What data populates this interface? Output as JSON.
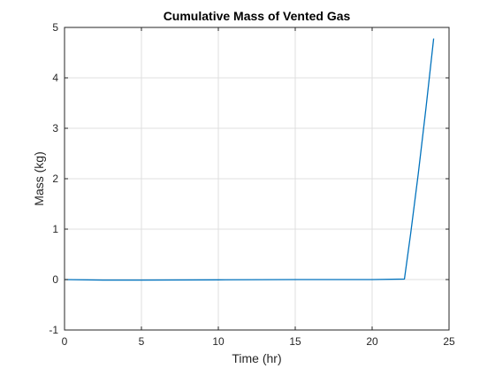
{
  "chart_data": {
    "type": "line",
    "title": "Cumulative Mass of Vented Gas",
    "xlabel": "Time (hr)",
    "ylabel": "Mass (kg)",
    "xlim": [
      0,
      25
    ],
    "ylim": [
      -1,
      5
    ],
    "xticks": [
      "0",
      "5",
      "10",
      "15",
      "20",
      "25"
    ],
    "yticks": [
      "-1",
      "0",
      "1",
      "2",
      "3",
      "4",
      "5"
    ],
    "grid": true,
    "series": [
      {
        "color": "#0072BD",
        "x": [
          0,
          2.5,
          5,
          10,
          15,
          20,
          22.1,
          22.5,
          23,
          23.5,
          24
        ],
        "y": [
          0,
          -0.01,
          -0.01,
          -0.005,
          0,
          0,
          0.01,
          0.9,
          2.1,
          3.4,
          4.78
        ]
      }
    ]
  }
}
